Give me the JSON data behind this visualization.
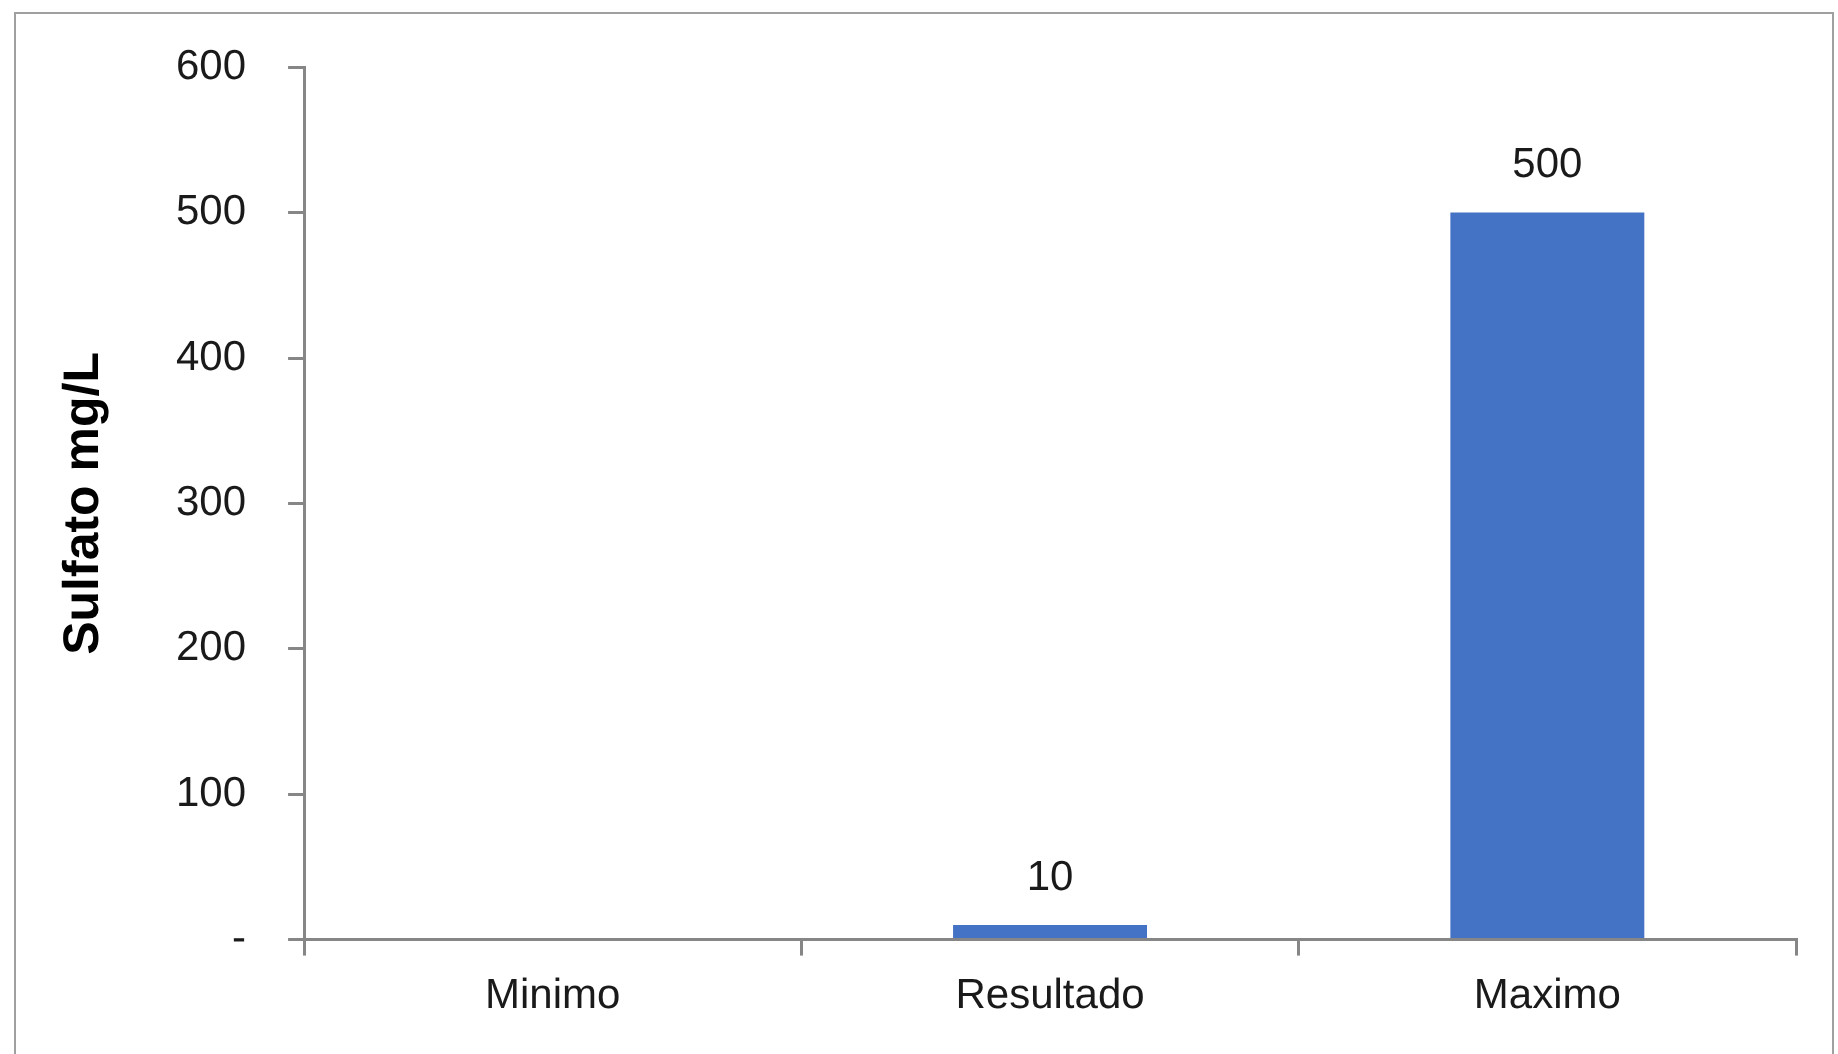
{
  "chart_data": {
    "type": "bar",
    "ylabel": "Sulfato mg/L",
    "categories": [
      "Minimo",
      "Resultado",
      "Maximo"
    ],
    "values": [
      null,
      10,
      500
    ],
    "color": "#4472c4",
    "ylim": [
      0,
      600
    ],
    "yticks": [
      {
        "value": 0,
        "label": "-"
      },
      100,
      200,
      300,
      400,
      500,
      600
    ],
    "grid": false,
    "data_labels": true
  }
}
